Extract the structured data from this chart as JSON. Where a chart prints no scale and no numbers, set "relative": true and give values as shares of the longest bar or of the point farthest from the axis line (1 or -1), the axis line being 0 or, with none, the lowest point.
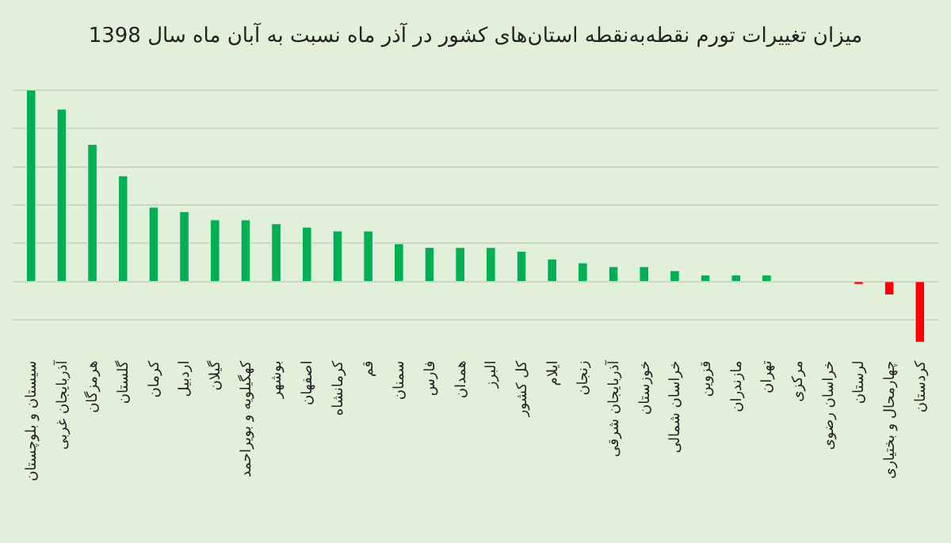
{
  "chart_data": {
    "type": "bar",
    "title": "میزان تغییرات تورم نقطه‌به‌نقطه استان‌های کشور در آذر ماه نسبت به آبان ماه سال 1398",
    "relative": true,
    "grid": "y",
    "categories": [
      "سیستان و بلوچستان",
      "آذربایجان غربی",
      "هرمزگان",
      "گلستان",
      "کرمان",
      "اردبیل",
      "گیلان",
      "کهگیلویه و بویراحمد",
      "بوشهر",
      "اصفهان",
      "کرمانشاه",
      "قم",
      "سمنان",
      "فارس",
      "همدان",
      "البرز",
      "کل کشور",
      "ایلام",
      "زنجان",
      "آذربایجان شرقی",
      "خوزستان",
      "خراسان شمالی",
      "قزوین",
      "مازندران",
      "تهران",
      "مرکزی",
      "خراسان رضوی",
      "لرستان",
      "چهارمحال و بختیاری",
      "کردستان"
    ],
    "values": [
      1,
      0.9,
      0.716,
      0.552,
      0.388,
      0.365,
      0.322,
      0.322,
      0.302,
      0.284,
      0.264,
      0.264,
      0.198,
      0.178,
      0.178,
      0.178,
      0.158,
      0.118,
      0.098,
      0.078,
      0.078,
      0.057,
      0.034,
      0.034,
      0.034,
      null,
      null,
      -0.014,
      -0.069,
      -0.316
    ],
    "colors": [
      "#00b050",
      "#00b050",
      "#00b050",
      "#00b050",
      "#00b050",
      "#00b050",
      "#00b050",
      "#00b050",
      "#00b050",
      "#00b050",
      "#00b050",
      "#00b050",
      "#00b050",
      "#00b050",
      "#00b050",
      "#00b050",
      "#00b050",
      "#00b050",
      "#00b050",
      "#00b050",
      "#00b050",
      "#00b050",
      "#00b050",
      "#00b050",
      "#00b050",
      "#00b050",
      "#00b050",
      "#ff0000",
      "#ff0000",
      "#ff0000"
    ]
  }
}
